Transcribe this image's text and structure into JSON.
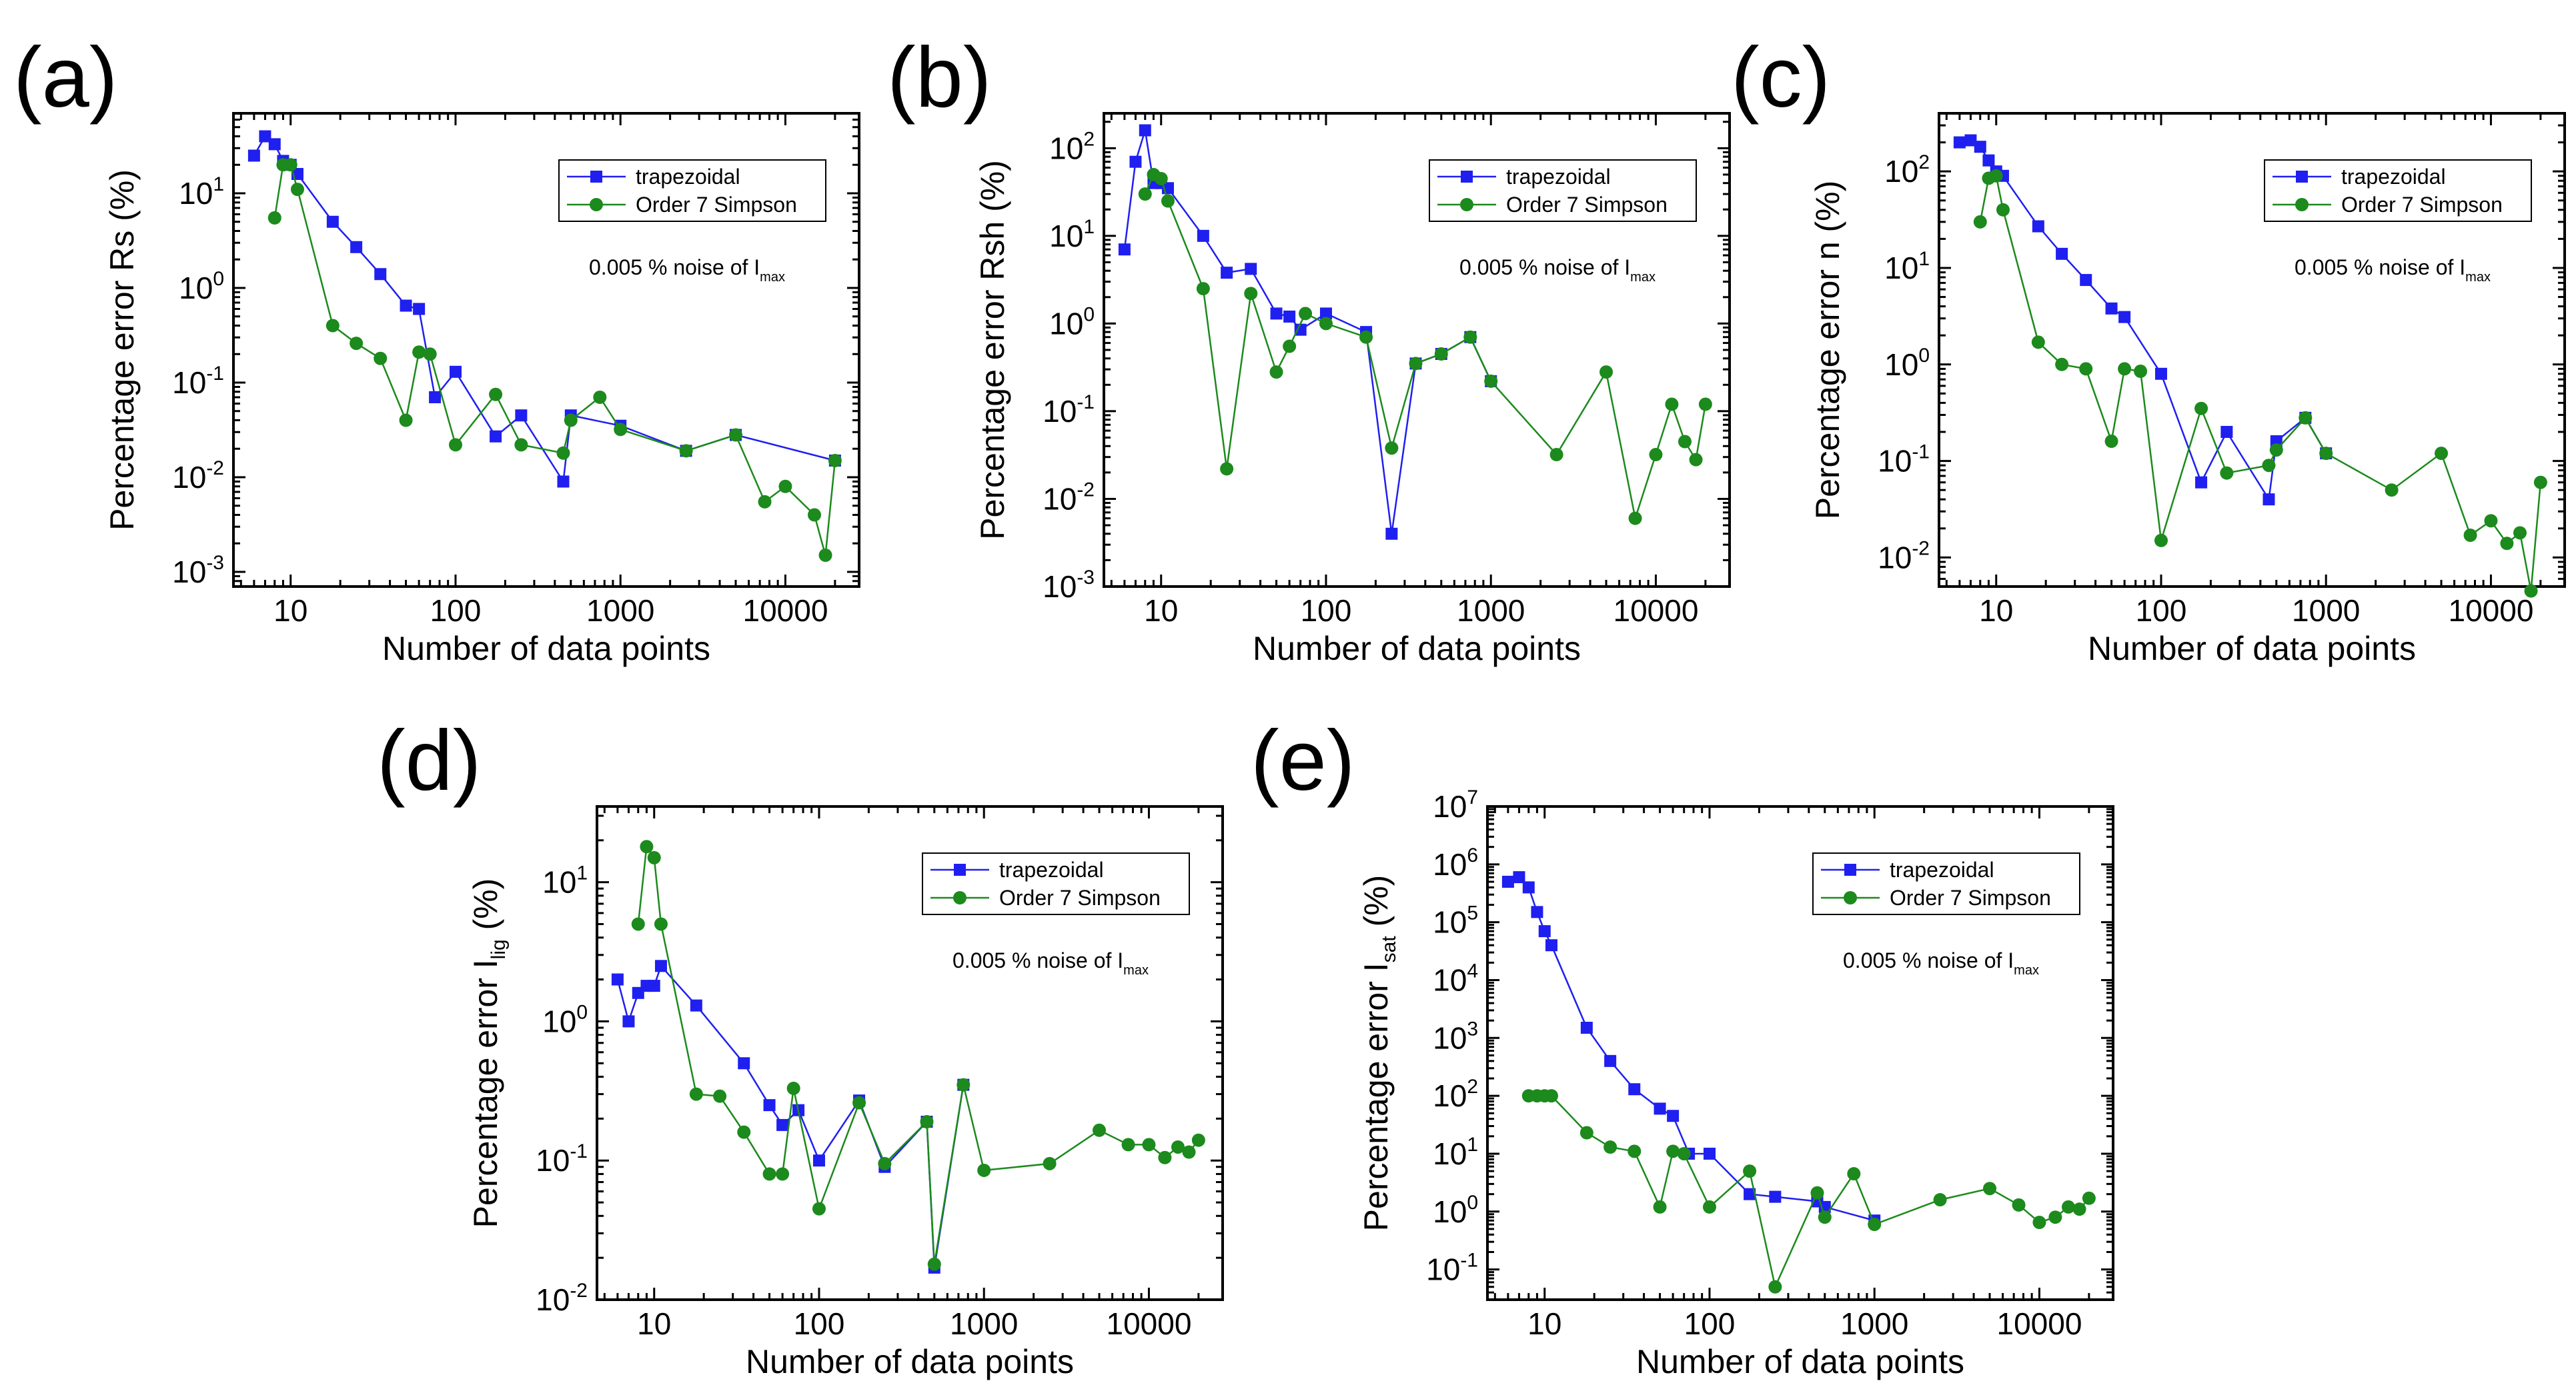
{
  "colors": {
    "trapezoidal": "#1f1ff0",
    "simpson": "#1c8a1c",
    "axis": "#000000"
  },
  "chart_data": [
    {
      "panel_label": "(a)",
      "type": "scatter",
      "xscale": "log",
      "yscale": "log",
      "xlabel": "Number of data points",
      "ylabel": "Percentage error Rs (%)",
      "ylabel_sub": "",
      "xlim": [
        4.5,
        28000
      ],
      "ylim": [
        0.0007,
        70
      ],
      "xticks": [
        10,
        100,
        1000,
        10000
      ],
      "xtick_labels": [
        "10",
        "100",
        "1000",
        "10000"
      ],
      "yticks": [
        0.001,
        0.01,
        0.1,
        1,
        10
      ],
      "ytick_labels": [
        {
          "base": "10",
          "exp": "-3"
        },
        {
          "base": "10",
          "exp": "-2"
        },
        {
          "base": "10",
          "exp": "-1"
        },
        {
          "base": "10",
          "exp": "0"
        },
        {
          "base": "10",
          "exp": "1"
        }
      ],
      "legend_position": "top-right",
      "annotation": {
        "prefix": "0.005 % noise of I",
        "sub": "max"
      },
      "series": [
        {
          "name": "trapezoidal",
          "marker": "square",
          "x": [
            6,
            7,
            8,
            9,
            10,
            11,
            18,
            25,
            35,
            50,
            60,
            75,
            100,
            175,
            250,
            450,
            500,
            1000,
            2500,
            5000,
            20000
          ],
          "y": [
            25,
            40,
            33,
            22,
            20,
            16,
            5,
            2.7,
            1.4,
            0.65,
            0.6,
            0.07,
            0.13,
            0.027,
            0.045,
            0.009,
            0.045,
            0.035,
            0.019,
            0.028,
            0.015
          ]
        },
        {
          "name": "Order 7 Simpson",
          "marker": "circle",
          "x": [
            8,
            9,
            10,
            11,
            18,
            25,
            35,
            50,
            60,
            70,
            100,
            175,
            250,
            450,
            500,
            750,
            1000,
            2500,
            5000,
            7500,
            10000,
            15000,
            17500,
            20000
          ],
          "y": [
            5.5,
            20,
            20,
            11,
            0.4,
            0.26,
            0.18,
            0.04,
            0.21,
            0.2,
            0.022,
            0.075,
            0.022,
            0.018,
            0.04,
            0.07,
            0.032,
            0.019,
            0.028,
            0.0055,
            0.008,
            0.004,
            0.0015,
            0.015
          ]
        }
      ]
    },
    {
      "panel_label": "(b)",
      "type": "scatter",
      "xscale": "log",
      "yscale": "log",
      "xlabel": "Number of data points",
      "ylabel": "Percentage error Rsh (%)",
      "ylabel_sub": "",
      "xlim": [
        4.5,
        28000
      ],
      "ylim": [
        0.001,
        250
      ],
      "xticks": [
        10,
        100,
        1000,
        10000
      ],
      "xtick_labels": [
        "10",
        "100",
        "1000",
        "10000"
      ],
      "yticks": [
        0.001,
        0.01,
        0.1,
        1,
        10,
        100
      ],
      "ytick_labels": [
        {
          "base": "10",
          "exp": "-3"
        },
        {
          "base": "10",
          "exp": "-2"
        },
        {
          "base": "10",
          "exp": "-1"
        },
        {
          "base": "10",
          "exp": "0"
        },
        {
          "base": "10",
          "exp": "1"
        },
        {
          "base": "10",
          "exp": "2"
        }
      ],
      "legend_position": "top-right",
      "annotation": {
        "prefix": "0.005 % noise of I",
        "sub": "max"
      },
      "series": [
        {
          "name": "trapezoidal",
          "marker": "square",
          "x": [
            6,
            7,
            8,
            9,
            10,
            11,
            18,
            25,
            35,
            50,
            60,
            70,
            100,
            175,
            250,
            350,
            500,
            750,
            1000
          ],
          "y": [
            7,
            70,
            160,
            40,
            40,
            35,
            10,
            3.8,
            4.2,
            1.3,
            1.2,
            0.85,
            1.3,
            0.8,
            0.004,
            0.35,
            0.45,
            0.7,
            0.22
          ]
        },
        {
          "name": "Order 7 Simpson",
          "marker": "circle",
          "x": [
            8,
            9,
            10,
            11,
            18,
            25,
            35,
            50,
            60,
            75,
            100,
            175,
            250,
            350,
            500,
            750,
            1000,
            2500,
            5000,
            7500,
            10000,
            12500,
            15000,
            17500,
            20000
          ],
          "y": [
            30,
            50,
            45,
            25,
            2.5,
            0.022,
            2.2,
            0.28,
            0.55,
            1.3,
            1.0,
            0.7,
            0.038,
            0.35,
            0.45,
            0.7,
            0.22,
            0.032,
            0.28,
            0.006,
            0.032,
            0.12,
            0.045,
            0.028,
            0.12
          ]
        }
      ]
    },
    {
      "panel_label": "(c)",
      "type": "scatter",
      "xscale": "log",
      "yscale": "log",
      "xlabel": "Number of data points",
      "ylabel": "Percentage error n (%)",
      "ylabel_sub": "",
      "xlim": [
        4.5,
        28000
      ],
      "ylim": [
        0.005,
        400
      ],
      "xticks": [
        10,
        100,
        1000,
        10000
      ],
      "xtick_labels": [
        "10",
        "100",
        "1000",
        "10000"
      ],
      "yticks": [
        0.01,
        0.1,
        1,
        10,
        100
      ],
      "ytick_labels": [
        {
          "base": "10",
          "exp": "-2"
        },
        {
          "base": "10",
          "exp": "-1"
        },
        {
          "base": "10",
          "exp": "0"
        },
        {
          "base": "10",
          "exp": "1"
        },
        {
          "base": "10",
          "exp": "2"
        }
      ],
      "legend_position": "top-right",
      "annotation": {
        "prefix": "0.005 % noise of I",
        "sub": "max"
      },
      "series": [
        {
          "name": "trapezoidal",
          "marker": "square",
          "x": [
            6,
            7,
            8,
            9,
            10,
            11,
            18,
            25,
            35,
            50,
            60,
            100,
            175,
            250,
            450,
            500,
            750,
            1000
          ],
          "y": [
            200,
            210,
            180,
            130,
            100,
            90,
            27,
            14,
            7.5,
            3.8,
            3.1,
            0.8,
            0.06,
            0.2,
            0.04,
            0.16,
            0.28,
            0.12
          ]
        },
        {
          "name": "Order 7 Simpson",
          "marker": "circle",
          "x": [
            8,
            9,
            10,
            11,
            18,
            25,
            35,
            50,
            60,
            75,
            100,
            175,
            250,
            450,
            500,
            750,
            1000,
            2500,
            5000,
            7500,
            10000,
            12500,
            15000,
            17500,
            20000
          ],
          "y": [
            30,
            85,
            90,
            40,
            1.7,
            1.0,
            0.9,
            0.16,
            0.9,
            0.85,
            0.015,
            0.35,
            0.075,
            0.09,
            0.13,
            0.28,
            0.12,
            0.05,
            0.12,
            0.017,
            0.024,
            0.014,
            0.018,
            0.0045,
            0.06
          ]
        }
      ]
    },
    {
      "panel_label": "(d)",
      "type": "scatter",
      "xscale": "log",
      "yscale": "log",
      "xlabel": "Number of data points",
      "ylabel": "Percentage error I",
      "ylabel_sub": "lig",
      "ylabel_suffix": " (%)",
      "xlim": [
        4.5,
        28000
      ],
      "ylim": [
        0.01,
        35
      ],
      "xticks": [
        10,
        100,
        1000,
        10000
      ],
      "xtick_labels": [
        "10",
        "100",
        "1000",
        "10000"
      ],
      "yticks": [
        0.01,
        0.1,
        1,
        10
      ],
      "ytick_labels": [
        {
          "base": "10",
          "exp": "-2"
        },
        {
          "base": "10",
          "exp": "-1"
        },
        {
          "base": "10",
          "exp": "0"
        },
        {
          "base": "10",
          "exp": "1"
        }
      ],
      "legend_position": "top-right",
      "annotation": {
        "prefix": "0.005 % noise of I",
        "sub": "max"
      },
      "series": [
        {
          "name": "trapezoidal",
          "marker": "square",
          "x": [
            6,
            7,
            8,
            9,
            10,
            11,
            18,
            35,
            50,
            60,
            75,
            100,
            175,
            250,
            450,
            500,
            750
          ],
          "y": [
            2.0,
            1.0,
            1.6,
            1.8,
            1.8,
            2.5,
            1.3,
            0.5,
            0.25,
            0.18,
            0.23,
            0.1,
            0.27,
            0.09,
            0.19,
            0.017,
            0.35
          ]
        },
        {
          "name": "Order 7 Simpson",
          "marker": "circle",
          "x": [
            8,
            9,
            10,
            11,
            18,
            25,
            35,
            50,
            60,
            70,
            100,
            175,
            250,
            450,
            500,
            750,
            1000,
            2500,
            5000,
            7500,
            10000,
            12500,
            15000,
            17500,
            20000
          ],
          "y": [
            5,
            18,
            15,
            5,
            0.3,
            0.29,
            0.16,
            0.08,
            0.08,
            0.33,
            0.045,
            0.26,
            0.095,
            0.19,
            0.018,
            0.35,
            0.085,
            0.095,
            0.165,
            0.13,
            0.13,
            0.105,
            0.125,
            0.115,
            0.14
          ]
        }
      ]
    },
    {
      "panel_label": "(e)",
      "type": "scatter",
      "xscale": "log",
      "yscale": "log",
      "xlabel": "Number of data points",
      "ylabel": "Percentage error I",
      "ylabel_sub": "sat",
      "ylabel_suffix": " (%)",
      "xlim": [
        4.5,
        28000
      ],
      "ylim": [
        0.03,
        10000000
      ],
      "xticks": [
        10,
        100,
        1000,
        10000
      ],
      "xtick_labels": [
        "10",
        "100",
        "1000",
        "10000"
      ],
      "yticks": [
        0.1,
        1,
        10,
        100,
        1000,
        10000,
        100000,
        1000000,
        10000000
      ],
      "ytick_labels": [
        {
          "base": "10",
          "exp": "-1"
        },
        {
          "base": "10",
          "exp": "0"
        },
        {
          "base": "10",
          "exp": "1"
        },
        {
          "base": "10",
          "exp": "2"
        },
        {
          "base": "10",
          "exp": "3"
        },
        {
          "base": "10",
          "exp": "4"
        },
        {
          "base": "10",
          "exp": "5"
        },
        {
          "base": "10",
          "exp": "6"
        },
        {
          "base": "10",
          "exp": "7"
        }
      ],
      "legend_position": "top-right",
      "annotation": {
        "prefix": "0.005 % noise of I",
        "sub": "max"
      },
      "series": [
        {
          "name": "trapezoidal",
          "marker": "square",
          "x": [
            6,
            7,
            8,
            9,
            10,
            11,
            18,
            25,
            35,
            50,
            60,
            75,
            100,
            175,
            250,
            450,
            500,
            1000
          ],
          "y": [
            500000,
            600000,
            400000,
            150000,
            70000,
            40000,
            1500,
            400,
            130,
            60,
            45,
            10,
            10,
            2,
            1.8,
            1.5,
            1.2,
            0.7
          ]
        },
        {
          "name": "Order 7 Simpson",
          "marker": "circle",
          "x": [
            8,
            9,
            10,
            11,
            18,
            25,
            35,
            50,
            60,
            70,
            100,
            175,
            250,
            450,
            500,
            750,
            1000,
            2500,
            5000,
            7500,
            10000,
            12500,
            15000,
            17500,
            20000
          ],
          "y": [
            100,
            100,
            100,
            100,
            23,
            13,
            11,
            1.2,
            11,
            10,
            1.2,
            5,
            0.05,
            2.1,
            0.8,
            4.5,
            0.6,
            1.6,
            2.5,
            1.3,
            0.65,
            0.8,
            1.2,
            1.1,
            1.7
          ]
        }
      ]
    }
  ]
}
